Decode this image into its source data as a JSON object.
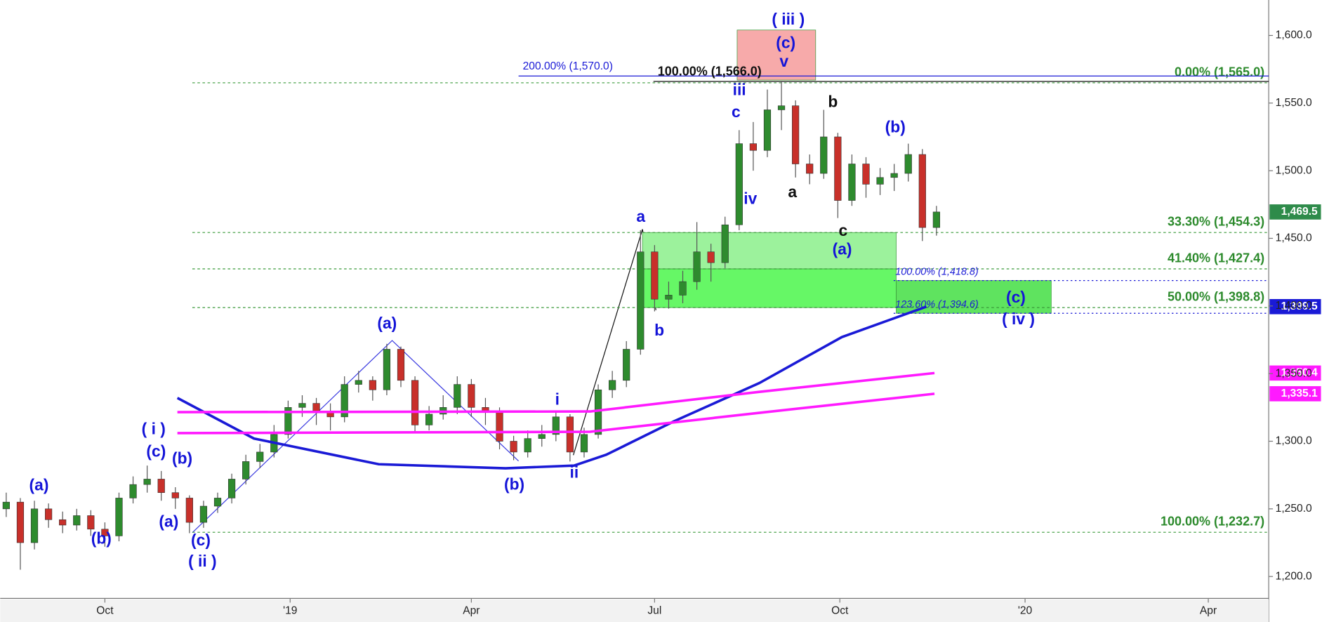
{
  "chart_data": {
    "type": "candlestick",
    "xlim": [
      0,
      630
    ],
    "ylim": [
      1183.8,
      1626.2
    ],
    "xticks": [
      {
        "value": 52,
        "label": "Oct"
      },
      {
        "value": 144,
        "label": "'19"
      },
      {
        "value": 234,
        "label": "Apr"
      },
      {
        "value": 325,
        "label": "Jul"
      },
      {
        "value": 417,
        "label": "Oct"
      },
      {
        "value": 509,
        "label": "'20"
      },
      {
        "value": 600,
        "label": "Apr"
      }
    ],
    "yticks": [
      {
        "value": 1200,
        "label": "1,200.0"
      },
      {
        "value": 1250,
        "label": "1,250.0"
      },
      {
        "value": 1300,
        "label": "1,300.0"
      },
      {
        "value": 1350,
        "label": "1,350.0"
      },
      {
        "value": 1400,
        "label": "1,400.0"
      },
      {
        "value": 1450,
        "label": "1,450.0"
      },
      {
        "value": 1500,
        "label": "1,500.0"
      },
      {
        "value": 1550,
        "label": "1,550.0"
      },
      {
        "value": 1600,
        "label": "1,600.0"
      }
    ],
    "up_color": "#2e8b2e",
    "down_color": "#c8302a",
    "x": [
      3,
      10,
      17,
      24,
      31,
      38,
      45,
      52,
      59,
      66,
      73,
      80,
      87,
      94,
      101,
      108,
      115,
      122,
      129,
      136,
      143,
      150,
      157,
      164,
      171,
      178,
      185,
      192,
      199,
      206,
      213,
      220,
      227,
      234,
      241,
      248,
      255,
      262,
      269,
      276,
      283,
      290,
      297,
      304,
      311,
      318,
      325,
      332,
      339,
      346,
      353,
      360,
      367,
      374,
      381,
      388,
      395,
      402,
      409,
      416,
      423,
      430,
      437,
      444,
      451,
      458,
      465
    ],
    "open": [
      1250,
      1255,
      1225,
      1250,
      1242,
      1238,
      1245,
      1235,
      1230,
      1258,
      1268,
      1272,
      1262,
      1258,
      1240,
      1252,
      1258,
      1272,
      1285,
      1292,
      1305,
      1325,
      1328,
      1322,
      1318,
      1342,
      1345,
      1338,
      1368,
      1345,
      1312,
      1320,
      1325,
      1342,
      1325,
      1322,
      1300,
      1292,
      1302,
      1305,
      1318,
      1292,
      1305,
      1338,
      1345,
      1368,
      1440,
      1405,
      1408,
      1418,
      1440,
      1432,
      1460,
      1520,
      1515,
      1545,
      1548,
      1505,
      1498,
      1525,
      1478,
      1505,
      1490,
      1495,
      1498,
      1512,
      1458
    ],
    "high": [
      1262,
      1258,
      1256,
      1254,
      1248,
      1250,
      1249,
      1240,
      1262,
      1274,
      1282,
      1278,
      1266,
      1260,
      1256,
      1262,
      1276,
      1290,
      1298,
      1312,
      1330,
      1334,
      1332,
      1328,
      1348,
      1352,
      1348,
      1372,
      1370,
      1348,
      1326,
      1334,
      1348,
      1346,
      1332,
      1325,
      1304,
      1308,
      1312,
      1322,
      1320,
      1310,
      1342,
      1352,
      1374,
      1456,
      1445,
      1418,
      1426,
      1462,
      1446,
      1466,
      1530,
      1536,
      1560,
      1566,
      1552,
      1512,
      1545,
      1528,
      1512,
      1510,
      1502,
      1505,
      1520,
      1516,
      1474
    ],
    "low": [
      1244,
      1205,
      1220,
      1236,
      1232,
      1234,
      1230,
      1222,
      1226,
      1254,
      1262,
      1256,
      1250,
      1232,
      1236,
      1247,
      1254,
      1268,
      1280,
      1288,
      1302,
      1318,
      1312,
      1308,
      1314,
      1336,
      1330,
      1334,
      1340,
      1306,
      1308,
      1316,
      1320,
      1318,
      1312,
      1294,
      1286,
      1288,
      1296,
      1300,
      1285,
      1288,
      1302,
      1332,
      1340,
      1364,
      1396,
      1398,
      1402,
      1412,
      1418,
      1428,
      1456,
      1500,
      1510,
      1530,
      1495,
      1490,
      1494,
      1465,
      1474,
      1480,
      1482,
      1485,
      1492,
      1448,
      1452
    ],
    "close": [
      1255,
      1225,
      1250,
      1242,
      1238,
      1245,
      1235,
      1230,
      1258,
      1268,
      1272,
      1262,
      1258,
      1240,
      1252,
      1258,
      1272,
      1285,
      1292,
      1305,
      1325,
      1328,
      1322,
      1318,
      1342,
      1345,
      1338,
      1368,
      1345,
      1312,
      1320,
      1325,
      1342,
      1325,
      1322,
      1300,
      1292,
      1302,
      1305,
      1318,
      1292,
      1305,
      1338,
      1345,
      1368,
      1440,
      1405,
      1408,
      1418,
      1440,
      1432,
      1460,
      1520,
      1515,
      1545,
      1548,
      1505,
      1498,
      1525,
      1478,
      1505,
      1490,
      1495,
      1498,
      1512,
      1458,
      1469.5
    ],
    "overlays": [
      {
        "color": "#1a1ad6",
        "x": [
          88,
          126,
          188,
          251,
          285,
          301,
          335,
          377,
          418,
          460
        ],
        "values": [
          1332,
          1302,
          1283,
          1280,
          1282,
          1290,
          1315,
          1343,
          1377,
          1399.5
        ]
      },
      {
        "color": "#ff1aff",
        "x": [
          88,
          293,
          377,
          464
        ],
        "values": [
          1321.5,
          1322,
          1336.5,
          1350.4
        ]
      },
      {
        "color": "#ff1aff",
        "x": [
          88,
          293,
          377,
          464
        ],
        "values": [
          1306,
          1307,
          1321,
          1335.1
        ]
      }
    ],
    "zones": [
      {
        "x0": 319,
        "x1": 445,
        "low": 1427.4,
        "high": 1454.3,
        "color": "#9cf29c"
      },
      {
        "x0": 319,
        "x1": 445,
        "low": 1398.8,
        "high": 1427.4,
        "color": "#66f766"
      },
      {
        "x0": 445,
        "x1": 522,
        "low": 1394.6,
        "high": 1418.8,
        "color": "#5fe35f"
      },
      {
        "x0": 366,
        "x1": 405,
        "low": 1567,
        "high": 1604,
        "color": "#f7aaaa"
      }
    ],
    "fib_levels": [
      {
        "value": 1565,
        "label": "0.00% (1,565.0)"
      },
      {
        "value": 1454.3,
        "label": "33.30% (1,454.3)"
      },
      {
        "value": 1427.4,
        "label": "41.40% (1,427.4)"
      },
      {
        "value": 1398.8,
        "label": "50.00% (1,398.8)"
      },
      {
        "value": 1232.7,
        "label": "100.00% (1,232.7)"
      }
    ],
    "targets": [
      {
        "value": 1570,
        "label": "200.00% (1,570.0)"
      },
      {
        "value": 1566,
        "label": "100.00% (1,566.0)"
      },
      {
        "value": 1418.8,
        "label": "100.00% (1,418.8)"
      },
      {
        "value": 1394.6,
        "label": "123.60% (1,394.6)"
      }
    ],
    "price_labels": [
      {
        "value": 1469.5,
        "label": "1,469.5",
        "color": "#2e8b4a"
      },
      {
        "value": 1399.5,
        "label": "1,399.5",
        "color": "#1a1ad6"
      },
      {
        "value": 1350.4,
        "label": "1,350.4",
        "color": "#ff1aff"
      },
      {
        "value": 1335.1,
        "label": "1,335.1",
        "color": "#ff1aff"
      }
    ],
    "annotations": [
      {
        "text": "(a)",
        "color": "#1414d8"
      },
      {
        "text": "(b)",
        "color": "#1414d8"
      },
      {
        "text": "( i )",
        "color": "#1414d8"
      },
      {
        "text": "(c)",
        "color": "#1414d8"
      },
      {
        "text": "(b)",
        "color": "#1414d8"
      },
      {
        "text": "(a)",
        "color": "#1414d8"
      },
      {
        "text": "(c)",
        "color": "#1414d8"
      },
      {
        "text": "( ii )",
        "color": "#1414d8"
      },
      {
        "text": "(a)",
        "color": "#1414d8"
      },
      {
        "text": "(b)",
        "color": "#1414d8"
      },
      {
        "text": "i",
        "color": "#1414d8"
      },
      {
        "text": "ii",
        "color": "#1414d8"
      },
      {
        "text": "a",
        "color": "#1414d8"
      },
      {
        "text": "b",
        "color": "#1414d8"
      },
      {
        "text": "iv",
        "color": "#1414d8"
      },
      {
        "text": "c",
        "color": "#1414d8"
      },
      {
        "text": "iii",
        "color": "#1414d8"
      },
      {
        "text": "( iii )",
        "color": "#1414d8"
      },
      {
        "text": "(c)",
        "color": "#1414d8"
      },
      {
        "text": "v",
        "color": "#1414d8"
      },
      {
        "text": "b",
        "color": "#111111"
      },
      {
        "text": "a",
        "color": "#111111"
      },
      {
        "text": "c",
        "color": "#111111"
      },
      {
        "text": "(a)",
        "color": "#1414d8"
      },
      {
        "text": "(b)",
        "color": "#1414d8"
      },
      {
        "text": "(c)",
        "color": "#1414d8"
      },
      {
        "text": "( iv )",
        "color": "#1414d8"
      }
    ]
  }
}
